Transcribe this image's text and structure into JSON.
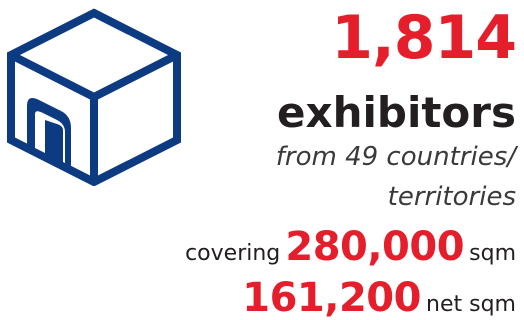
{
  "colors": {
    "accent": "#e41e2b",
    "navy": "#0d3b82",
    "text": "#231f20"
  },
  "icon": "cube-with-door-icon",
  "exhibitors": {
    "count": "1,814",
    "label": "exhibitors",
    "origin_line1": "from 49 countries/",
    "origin_line2": "territories"
  },
  "space": {
    "gross_prefix": "covering",
    "gross_value": "280,000",
    "gross_unit": "sqm",
    "net_value": "161,200",
    "net_unit": "net sqm"
  }
}
